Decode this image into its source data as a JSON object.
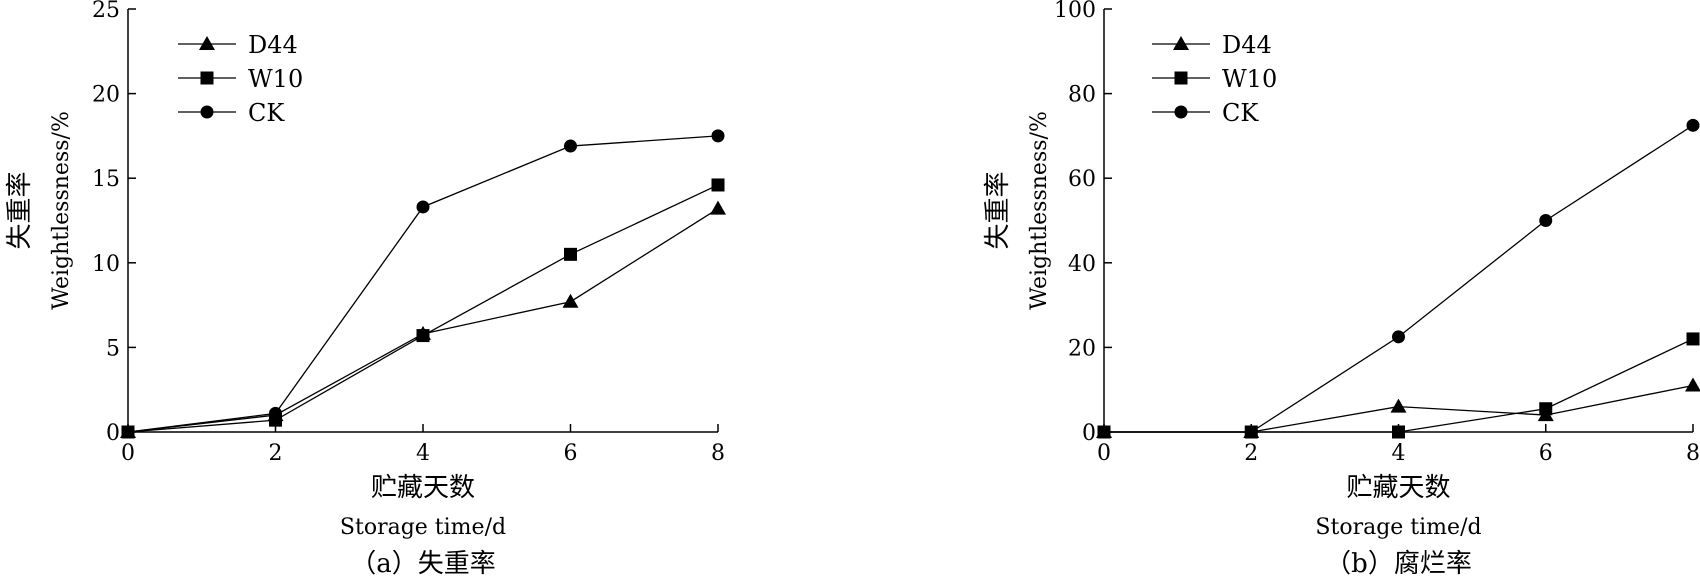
{
  "chart_data": [
    {
      "type": "line",
      "caption": "（a）失重率",
      "xlabel_cn": "贮藏天数",
      "xlabel_en": "Storage time/d",
      "ylabel_cn": "失重率",
      "ylabel_en": "Weightlessness/%",
      "xlim": [
        0,
        8
      ],
      "ylim": [
        0,
        25
      ],
      "x_ticks": [
        0,
        2,
        4,
        6,
        8
      ],
      "y_ticks": [
        0,
        5,
        10,
        15,
        20,
        25
      ],
      "grid": false,
      "legend_position": "top-left",
      "x": [
        0,
        2,
        4,
        6,
        8
      ],
      "series": [
        {
          "name": "D44",
          "marker": "triangle",
          "values": [
            0,
            1.0,
            5.8,
            7.7,
            13.2
          ]
        },
        {
          "name": "W10",
          "marker": "square",
          "values": [
            0,
            0.7,
            5.7,
            10.5,
            14.6
          ]
        },
        {
          "name": "CK",
          "marker": "circle",
          "values": [
            0,
            1.1,
            13.3,
            16.9,
            17.5
          ]
        }
      ]
    },
    {
      "type": "line",
      "caption": "（b）腐烂率",
      "xlabel_cn": "贮藏天数",
      "xlabel_en": "Storage time/d",
      "ylabel_cn": "失重率",
      "ylabel_en": "Weightlessness/%",
      "xlim": [
        0,
        8
      ],
      "ylim": [
        0,
        100
      ],
      "x_ticks": [
        0,
        2,
        4,
        6,
        8
      ],
      "y_ticks": [
        0,
        20,
        40,
        60,
        80,
        100
      ],
      "grid": false,
      "legend_position": "top-left",
      "x": [
        0,
        2,
        4,
        6,
        8
      ],
      "series": [
        {
          "name": "D44",
          "marker": "triangle",
          "values": [
            0,
            0,
            6,
            4,
            11
          ]
        },
        {
          "name": "W10",
          "marker": "square",
          "values": [
            0,
            0,
            0,
            5.5,
            22
          ]
        },
        {
          "name": "CK",
          "marker": "circle",
          "values": [
            0,
            0,
            22.5,
            50,
            72.5
          ]
        }
      ]
    }
  ],
  "colors": {
    "line": "#000000",
    "background": "#ffffff"
  }
}
